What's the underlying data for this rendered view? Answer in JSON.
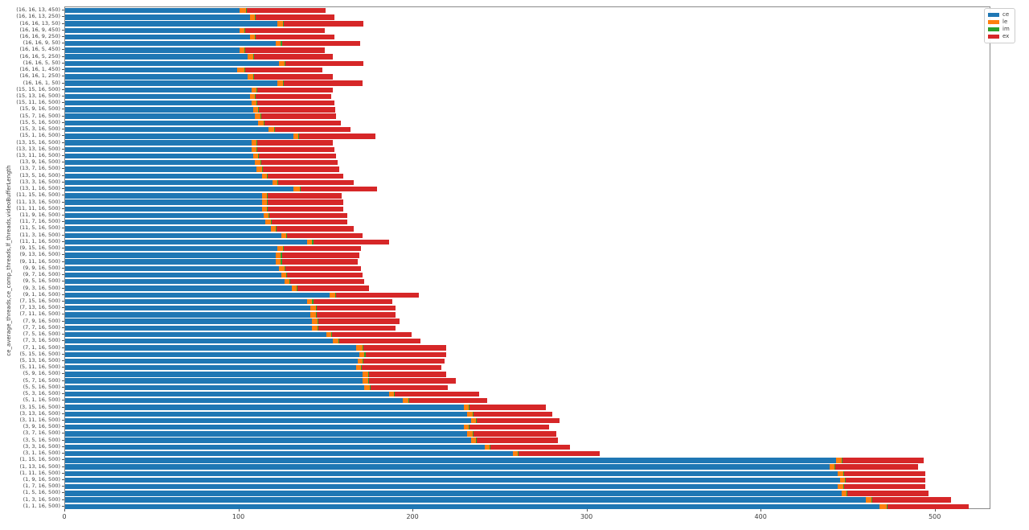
{
  "figure": {
    "background": "#ffffff",
    "spine_color": "#8a8a8a"
  },
  "legend": {
    "position": "upper right",
    "entries": [
      {
        "label": "ce",
        "color": "#1f77b4"
      },
      {
        "label": "le",
        "color": "#ff7f0e"
      },
      {
        "label": "im",
        "color": "#2ca02c"
      },
      {
        "label": "ex",
        "color": "#d62728"
      }
    ]
  },
  "chart_data": {
    "type": "bar",
    "orientation": "horizontal",
    "stacked": true,
    "title": "",
    "xlabel": "",
    "ylabel": "ce_average_threads,ce_comp_threads,lf_threads,videoBufferLength",
    "xlim": [
      0,
      532
    ],
    "x_ticks": [
      0,
      100,
      200,
      300,
      400,
      500
    ],
    "grid": false,
    "legend_position": "upper right",
    "categories": [
      "(16, 16, 13, 450)",
      "(16, 16, 13, 250)",
      "(16, 16, 13, 50)",
      "(16, 16, 9, 450)",
      "(16, 16, 9, 250)",
      "(16, 16, 9, 50)",
      "(16, 16, 5, 450)",
      "(16, 16, 5, 250)",
      "(16, 16, 5, 50)",
      "(16, 16, 1, 450)",
      "(16, 16, 1, 250)",
      "(16, 16, 1, 50)",
      "(15, 15, 16, 500)",
      "(15, 13, 16, 500)",
      "(15, 11, 16, 500)",
      "(15, 9, 16, 500)",
      "(15, 7, 16, 500)",
      "(15, 5, 16, 500)",
      "(15, 3, 16, 500)",
      "(15, 1, 16, 500)",
      "(13, 15, 16, 500)",
      "(13, 13, 16, 500)",
      "(13, 11, 16, 500)",
      "(13, 9, 16, 500)",
      "(13, 7, 16, 500)",
      "(13, 5, 16, 500)",
      "(13, 3, 16, 500)",
      "(13, 1, 16, 500)",
      "(11, 15, 16, 500)",
      "(11, 13, 16, 500)",
      "(11, 11, 16, 500)",
      "(11, 9, 16, 500)",
      "(11, 7, 16, 500)",
      "(11, 5, 16, 500)",
      "(11, 3, 16, 500)",
      "(11, 1, 16, 500)",
      "(9, 15, 16, 500)",
      "(9, 13, 16, 500)",
      "(9, 11, 16, 500)",
      "(9, 9, 16, 500)",
      "(9, 7, 16, 500)",
      "(9, 5, 16, 500)",
      "(9, 3, 16, 500)",
      "(9, 1, 16, 500)",
      "(7, 15, 16, 500)",
      "(7, 13, 16, 500)",
      "(7, 11, 16, 500)",
      "(7, 9, 16, 500)",
      "(7, 7, 16, 500)",
      "(7, 5, 16, 500)",
      "(7, 3, 16, 500)",
      "(7, 1, 16, 500)",
      "(5, 15, 16, 500)",
      "(5, 13, 16, 500)",
      "(5, 11, 16, 500)",
      "(5, 9, 16, 500)",
      "(5, 7, 16, 500)",
      "(5, 5, 16, 500)",
      "(5, 3, 16, 500)",
      "(5, 1, 16, 500)",
      "(3, 15, 16, 500)",
      "(3, 13, 16, 500)",
      "(3, 11, 16, 500)",
      "(3, 9, 16, 500)",
      "(3, 7, 16, 500)",
      "(3, 5, 16, 500)",
      "(3, 3, 16, 500)",
      "(3, 1, 16, 500)",
      "(1, 15, 16, 500)",
      "(1, 13, 16, 500)",
      "(1, 11, 16, 500)",
      "(1, 9, 16, 500)",
      "(1, 7, 16, 500)",
      "(1, 5, 16, 500)",
      "(1, 3, 16, 500)",
      "(1, 1, 16, 500)"
    ],
    "series": [
      {
        "name": "ce",
        "color": "#1f77b4",
        "values": [
          100,
          106,
          122,
          100,
          106,
          121,
          100,
          105,
          123,
          99,
          105,
          122,
          107,
          106,
          107,
          108,
          109,
          111,
          117,
          131,
          107,
          107,
          108,
          109,
          110,
          113,
          119,
          131,
          113,
          113,
          113,
          114,
          115,
          118,
          124,
          139,
          122,
          121,
          121,
          123,
          124,
          126,
          130,
          152,
          139,
          141,
          141,
          142,
          142,
          150,
          154,
          167,
          169,
          168,
          167,
          171,
          171,
          172,
          186,
          194,
          229,
          231,
          233,
          229,
          231,
          233,
          241,
          257,
          443,
          439,
          444,
          445,
          444,
          446,
          460,
          468
        ]
      },
      {
        "name": "le",
        "color": "#ff7f0e",
        "values": [
          4,
          3,
          3,
          3,
          3,
          3,
          3,
          3,
          3,
          4,
          3,
          3,
          3,
          3,
          3,
          3,
          3,
          3,
          3,
          3,
          3,
          3,
          3,
          3,
          3,
          3,
          3,
          4,
          3,
          3,
          3,
          3,
          3,
          3,
          3,
          3,
          3,
          3,
          3,
          3,
          3,
          3,
          3,
          3,
          3,
          3,
          3,
          3,
          3,
          3,
          3,
          4,
          3,
          3,
          3,
          3,
          3,
          3,
          3,
          3,
          3,
          3,
          3,
          3,
          3,
          3,
          3,
          3,
          3,
          3,
          3,
          3,
          3,
          3,
          3,
          4
        ]
      },
      {
        "name": "im",
        "color": "#2ca02c",
        "values": [
          0.5,
          0.5,
          0.5,
          0.5,
          0.5,
          0.5,
          0.5,
          0.5,
          0.5,
          0.5,
          0.5,
          0.5,
          0.5,
          0.5,
          0.5,
          0.5,
          0.5,
          0.5,
          0.5,
          0.5,
          0.5,
          0.5,
          0.5,
          0.5,
          0.5,
          0.5,
          0.5,
          0.5,
          0.5,
          0.5,
          0.5,
          0.5,
          0.5,
          0.5,
          0.5,
          0.5,
          0.5,
          0.5,
          0.5,
          0.5,
          0.5,
          0.5,
          0.5,
          0.5,
          0.5,
          0.5,
          0.5,
          0.5,
          0.5,
          0.5,
          0.5,
          0.5,
          0.5,
          0.5,
          0.5,
          0.5,
          0.5,
          0.5,
          0.5,
          0.5,
          0.5,
          0.5,
          0.5,
          0.5,
          0.5,
          0.5,
          0.5,
          0.5,
          0.5,
          0.5,
          0.5,
          0.5,
          0.5,
          0.5,
          0.5,
          0.5
        ]
      },
      {
        "name": "ex",
        "color": "#d62728",
        "values": [
          45,
          45,
          46,
          45.5,
          45,
          45,
          45.5,
          45.5,
          45,
          44.5,
          45.5,
          45.5,
          43.5,
          43.5,
          44,
          43.5,
          43,
          44,
          43.5,
          44,
          43.5,
          44,
          44,
          44,
          44,
          43.5,
          43.5,
          43.5,
          42.5,
          43.5,
          43.5,
          44.5,
          43.5,
          44.5,
          43.5,
          43.5,
          44.5,
          44.5,
          43.5,
          43.5,
          43.5,
          42.5,
          41,
          47.5,
          45.5,
          45.5,
          45.5,
          46.5,
          44.5,
          45.5,
          46.5,
          47.5,
          46.5,
          46.5,
          45.5,
          44.5,
          50,
          44.5,
          48.5,
          45,
          43.5,
          45.5,
          47.5,
          45.5,
          47.5,
          46.5,
          45.5,
          46.5,
          46.5,
          47.5,
          46.5,
          45.5,
          46.5,
          46.5,
          45.5,
          46.5
        ]
      }
    ]
  }
}
